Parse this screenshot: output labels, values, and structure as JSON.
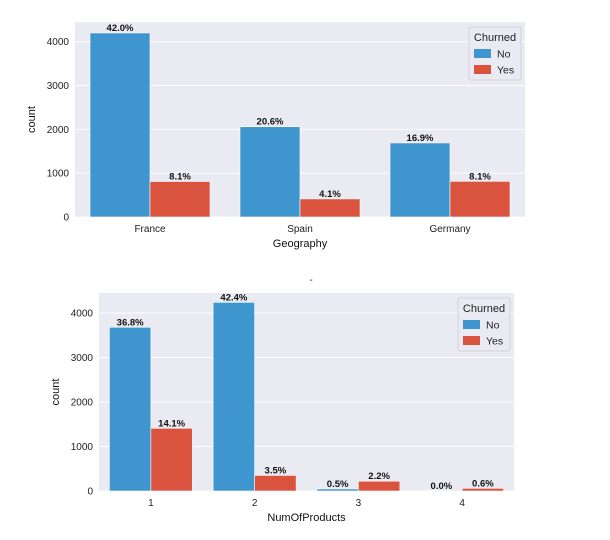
{
  "separator_text": "-",
  "colors": {
    "No": "#3f96cf",
    "Yes": "#d9533e",
    "background": "#eaeaf2",
    "grid": "#ffffff"
  },
  "chart_data": [
    {
      "type": "bar",
      "xlabel": "Geography",
      "ylabel": "count",
      "ylim": [
        0,
        4450
      ],
      "yticks": [
        0,
        1000,
        2000,
        3000,
        4000
      ],
      "categories": [
        "France",
        "Spain",
        "Germany"
      ],
      "legend": {
        "title": "Churned",
        "placement": "top-right"
      },
      "series": [
        {
          "name": "No",
          "values": [
            4200,
            2060,
            1690
          ],
          "labels": [
            "42.0%",
            "20.6%",
            "16.9%"
          ]
        },
        {
          "name": "Yes",
          "values": [
            810,
            413,
            814
          ],
          "labels": [
            "8.1%",
            "4.1%",
            "8.1%"
          ]
        }
      ],
      "grid": true
    },
    {
      "type": "bar",
      "xlabel": "NumOfProducts",
      "ylabel": "count",
      "ylim": [
        0,
        4450
      ],
      "yticks": [
        0,
        1000,
        2000,
        3000,
        4000
      ],
      "categories": [
        "1",
        "2",
        "3",
        "4"
      ],
      "legend": {
        "title": "Churned",
        "placement": "top-right"
      },
      "series": [
        {
          "name": "No",
          "values": [
            3680,
            4240,
            46,
            0
          ],
          "labels": [
            "36.8%",
            "42.4%",
            "0.5%",
            "0.0%"
          ]
        },
        {
          "name": "Yes",
          "values": [
            1410,
            350,
            220,
            60
          ],
          "labels": [
            "14.1%",
            "3.5%",
            "2.2%",
            "0.6%"
          ]
        }
      ],
      "grid": true
    }
  ]
}
